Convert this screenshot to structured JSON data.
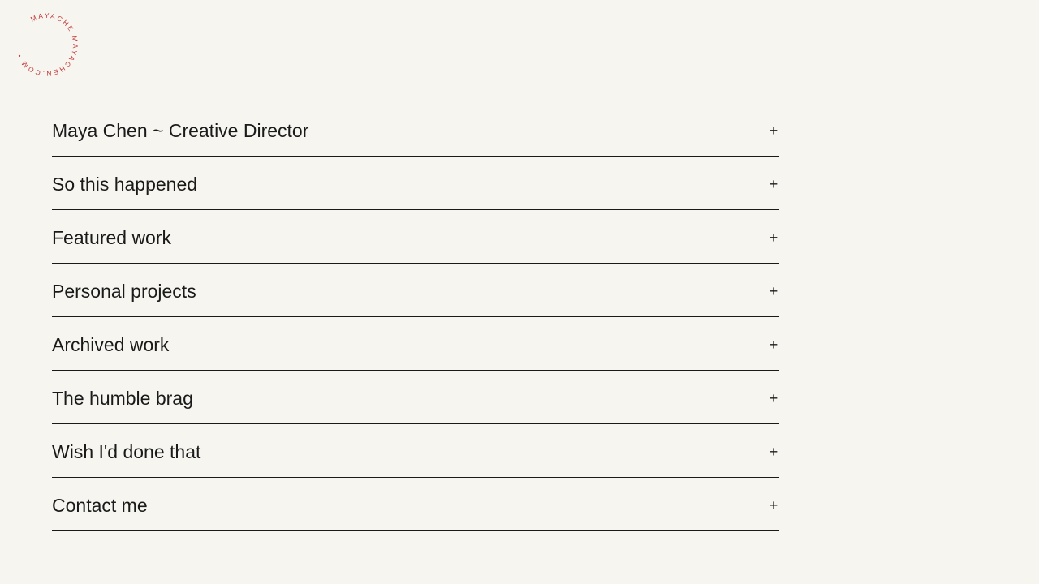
{
  "logo": {
    "text": "MAYACHE MAYACHEN.COM • ",
    "color": "#c23a3a"
  },
  "accordion": {
    "expand_icon": "+",
    "items": [
      {
        "label": "Maya Chen ~ Creative Director"
      },
      {
        "label": "So this happened"
      },
      {
        "label": "Featured work"
      },
      {
        "label": "Personal projects"
      },
      {
        "label": "Archived work"
      },
      {
        "label": "The humble brag"
      },
      {
        "label": "Wish I'd done that"
      },
      {
        "label": "Contact me"
      }
    ]
  }
}
